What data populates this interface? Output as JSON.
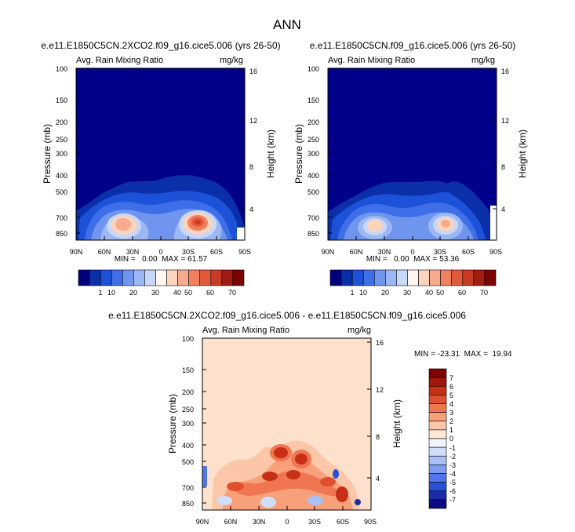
{
  "page_title": "ANN",
  "colors": {
    "deep": "#00008b",
    "warm_bg": "#fde1cc",
    "rain_scale": [
      "#00007f",
      "#0a2fa8",
      "#1c52d8",
      "#3f6fe8",
      "#6f95ef",
      "#9cb8f4",
      "#c6d7f8",
      "#fff6f0",
      "#fcd3bd",
      "#f8ab8c",
      "#f0805f",
      "#e05a3a",
      "#c93a22",
      "#a11d12",
      "#7a0303"
    ],
    "diff_scale": [
      "#0b0b7f",
      "#1b2ca8",
      "#2b50d8",
      "#4f76ea",
      "#7c9df0",
      "#a8c0f5",
      "#d1def9",
      "#f0f5fd",
      "#fde6d6",
      "#fbc7a8",
      "#f7a07a",
      "#ef7651",
      "#e0502f",
      "#c72f17",
      "#a4150b",
      "#7e0000"
    ]
  },
  "chart_data": [
    {
      "type": "heatmap",
      "title": "e.e11.E1850C5CN.2XCO2.f09_g16.cice5.006 (yrs 26-50)",
      "left_label": "Avg. Rain Mixing Ratio",
      "right_label": "mg/kg",
      "ylabel": "Pressure (mb)",
      "y2label": "Height (km)",
      "x_ticks": [
        "90N",
        "60N",
        "30N",
        "0",
        "30S",
        "60S",
        "90S"
      ],
      "y_ticks": [
        "100",
        "150",
        "200",
        "250",
        "300",
        "400",
        "500",
        "700",
        "850"
      ],
      "y2_ticks": [
        "16",
        "12",
        "8",
        "4"
      ],
      "stats": "MIN =   0.00  MAX = 61.57",
      "min": 0.0,
      "max": 61.57,
      "colorbar_labels": [
        "1",
        "10",
        "20",
        "30",
        "40",
        "50",
        "60",
        "70"
      ]
    },
    {
      "type": "heatmap",
      "title": "e.e11.E1850C5CN.f09_g16.cice5.006 (yrs 26-50)",
      "left_label": "Avg. Rain Mixing Ratio",
      "right_label": "mg/kg",
      "ylabel": "Pressure (mb)",
      "y2label": "Height (km)",
      "x_ticks": [
        "90N",
        "60N",
        "30N",
        "0",
        "30S",
        "60S",
        "90S"
      ],
      "y_ticks": [
        "100",
        "150",
        "200",
        "250",
        "300",
        "400",
        "500",
        "700",
        "850"
      ],
      "y2_ticks": [
        "16",
        "12",
        "8",
        "4"
      ],
      "stats": "MIN =   0.00  MAX = 53.36",
      "min": 0.0,
      "max": 53.36,
      "colorbar_labels": [
        "1",
        "10",
        "20",
        "30",
        "40",
        "50",
        "60",
        "70"
      ]
    },
    {
      "type": "heatmap",
      "title": "e.e11.E1850C5CN.2XCO2.f09_g16.cice5.006 - e.e11.E1850C5CN.f09_g16.cice5.006",
      "left_label": "Avg. Rain Mixing Ratio",
      "right_label": "mg/kg",
      "ylabel": "Pressure (mb)",
      "y2label": "Height (km)",
      "x_ticks": [
        "90N",
        "60N",
        "30N",
        "0",
        "30S",
        "60S",
        "90S"
      ],
      "y_ticks": [
        "100",
        "150",
        "200",
        "250",
        "300",
        "400",
        "500",
        "700",
        "850"
      ],
      "y2_ticks": [
        "16",
        "12",
        "8",
        "4"
      ],
      "stats": "MIN = -23.31  MAX =  19.94",
      "min": -23.31,
      "max": 19.94,
      "colorbar_labels": [
        "7",
        "6",
        "5",
        "4",
        "3",
        "2",
        "1",
        "0",
        "-1",
        "-2",
        "-3",
        "-4",
        "-5",
        "-6",
        "-7"
      ]
    }
  ]
}
